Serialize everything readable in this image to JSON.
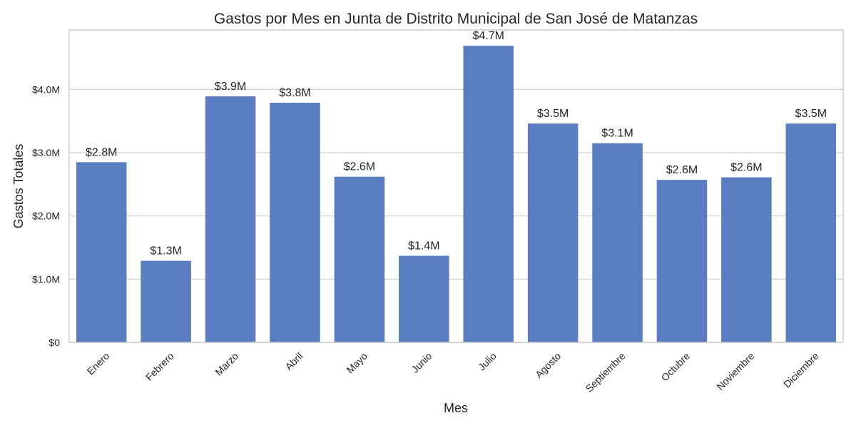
{
  "chart_data": {
    "type": "bar",
    "title": "Gastos por Mes en Junta de Distrito Municipal de San José de Matanzas",
    "xlabel": "Mes",
    "ylabel": "Gastos Totales",
    "categories": [
      "Enero",
      "Febrero",
      "Marzo",
      "Abril",
      "Mayo",
      "Junio",
      "Julio",
      "Agosto",
      "Septiembre",
      "Octubre",
      "Noviembre",
      "Diciembre"
    ],
    "values": [
      2850000,
      1290000,
      3890000,
      3790000,
      2620000,
      1370000,
      4690000,
      3460000,
      3150000,
      2570000,
      2610000,
      3460000
    ],
    "data_labels": [
      "$2.8M",
      "$1.3M",
      "$3.9M",
      "$3.8M",
      "$2.6M",
      "$1.4M",
      "$4.7M",
      "$3.5M",
      "$3.1M",
      "$2.6M",
      "$2.6M",
      "$3.5M"
    ],
    "y_ticks": [
      0,
      1000000,
      2000000,
      3000000,
      4000000
    ],
    "y_tick_labels": [
      "$0",
      "$1.0M",
      "$2.0M",
      "$3.0M",
      "$4.0M"
    ],
    "ylim": [
      0,
      4940000
    ],
    "grid": "horizontal",
    "bar_color": "#5a7dc1",
    "grid_color": "#d0d0d0",
    "axis_color": "#cccccc"
  }
}
